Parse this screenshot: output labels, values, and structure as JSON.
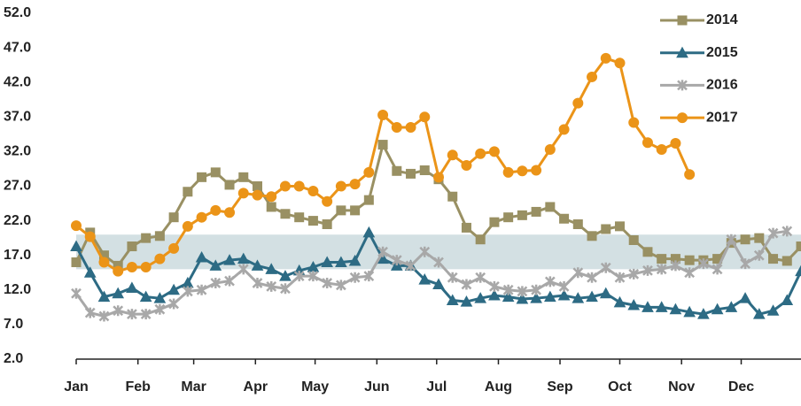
{
  "chart_data": {
    "type": "line",
    "x": [
      0,
      1,
      2,
      3,
      4,
      5,
      6,
      7,
      8,
      9,
      10,
      11,
      12,
      13,
      14,
      15,
      16,
      17,
      18,
      19,
      20,
      21,
      22,
      23,
      24,
      25,
      26,
      27,
      28,
      29,
      30,
      31,
      32,
      33,
      34,
      35,
      36,
      37,
      38,
      39,
      40,
      41,
      42,
      43,
      44,
      45,
      46,
      47,
      48,
      49,
      50,
      51,
      52
    ],
    "xlim": [
      0,
      52
    ],
    "xticks": [
      {
        "value": 0,
        "label": "Jan"
      },
      {
        "value": 4.43,
        "label": "Feb"
      },
      {
        "value": 8.43,
        "label": "Mar"
      },
      {
        "value": 12.86,
        "label": "Apr"
      },
      {
        "value": 17.14,
        "label": "May"
      },
      {
        "value": 21.57,
        "label": "Jun"
      },
      {
        "value": 25.86,
        "label": "Jul"
      },
      {
        "value": 30.29,
        "label": "Aug"
      },
      {
        "value": 34.71,
        "label": "Sep"
      },
      {
        "value": 39,
        "label": "Oct"
      },
      {
        "value": 43.43,
        "label": "Nov"
      },
      {
        "value": 47.71,
        "label": "Dec"
      }
    ],
    "ylim": [
      2,
      52
    ],
    "yticks": [
      {
        "value": 2,
        "label": "2.0"
      },
      {
        "value": 7,
        "label": "7.0"
      },
      {
        "value": 12,
        "label": "12.0"
      },
      {
        "value": 17,
        "label": "17.0"
      },
      {
        "value": 22,
        "label": "22.0"
      },
      {
        "value": 27,
        "label": "27.0"
      },
      {
        "value": 32,
        "label": "32.0"
      },
      {
        "value": 37,
        "label": "37.0"
      },
      {
        "value": 42,
        "label": "42.0"
      },
      {
        "value": 47,
        "label": "47.0"
      },
      {
        "value": 52,
        "label": "52.0"
      }
    ],
    "band": [
      15,
      20
    ],
    "band_color": "#d3e0e3",
    "legend": "upper right",
    "series": [
      {
        "name": "2014",
        "color": "#999063",
        "marker": "square",
        "values": [
          16,
          20.3,
          17,
          15.5,
          18.3,
          19.5,
          19.8,
          22.5,
          26.2,
          28.3,
          29,
          27.2,
          28.3,
          27,
          24,
          23,
          22.5,
          22,
          21.5,
          23.5,
          23.5,
          25,
          33,
          29.2,
          28.8,
          29.3,
          28,
          25.5,
          21,
          19.3,
          21.8,
          22.5,
          22.8,
          23.3,
          24,
          22.3,
          21.5,
          19.8,
          20.8,
          21.2,
          19.2,
          17.5,
          16.5,
          16.5,
          16.3,
          16.3,
          16.5,
          18.8,
          19.3,
          19.5,
          16.5,
          16.2,
          18.3
        ]
      },
      {
        "name": "2015",
        "color": "#2d6b84",
        "marker": "triangle",
        "values": [
          18.3,
          14.5,
          11,
          11.5,
          12.3,
          11,
          10.8,
          12,
          13,
          16.7,
          15.5,
          16.3,
          16.5,
          15.5,
          15,
          14,
          14.8,
          15.3,
          16,
          16,
          16.2,
          20.3,
          16.5,
          15.5,
          15.5,
          13.5,
          12.8,
          10.5,
          10.3,
          10.8,
          11.2,
          11,
          10.7,
          10.8,
          11,
          11.2,
          10.8,
          11,
          11.5,
          10.2,
          9.8,
          9.5,
          9.5,
          9.2,
          8.8,
          8.5,
          9.2,
          9.5,
          10.8,
          8.5,
          9,
          10.5,
          14.7
        ]
      },
      {
        "name": "2016",
        "color": "#a8a8a8",
        "marker": "star",
        "values": [
          11.5,
          8.7,
          8.2,
          9,
          8.5,
          8.5,
          9.2,
          10,
          11.8,
          12,
          13,
          13.3,
          15,
          13,
          12.5,
          12.2,
          14,
          14,
          13,
          12.7,
          13.8,
          14,
          17.5,
          16.3,
          15.5,
          17.5,
          16,
          13.8,
          12.8,
          13.8,
          12.5,
          12,
          11.8,
          12,
          13.2,
          12.5,
          14.5,
          13.8,
          15.2,
          13.8,
          14.3,
          14.8,
          15,
          15.5,
          14.5,
          15.8,
          15,
          19.3,
          15.8,
          17,
          20.2,
          20.5,
          null
        ]
      },
      {
        "name": "2017",
        "color": "#eb9418",
        "marker": "circle",
        "values": [
          21.3,
          19.7,
          16,
          14.7,
          15.3,
          15.3,
          16.5,
          18,
          21.2,
          22.5,
          23.5,
          23.2,
          26,
          25.7,
          25.5,
          27,
          27,
          26.3,
          24.8,
          27,
          27.3,
          29,
          37.3,
          35.5,
          35.5,
          37,
          28.3,
          31.5,
          30,
          31.7,
          32,
          29,
          29.2,
          29.3,
          32.3,
          35.2,
          39,
          42.8,
          45.5,
          44.8,
          36.2,
          33.3,
          32.3,
          33.2,
          28.7,
          null,
          null,
          null,
          null,
          null,
          null,
          null,
          null
        ]
      }
    ]
  }
}
